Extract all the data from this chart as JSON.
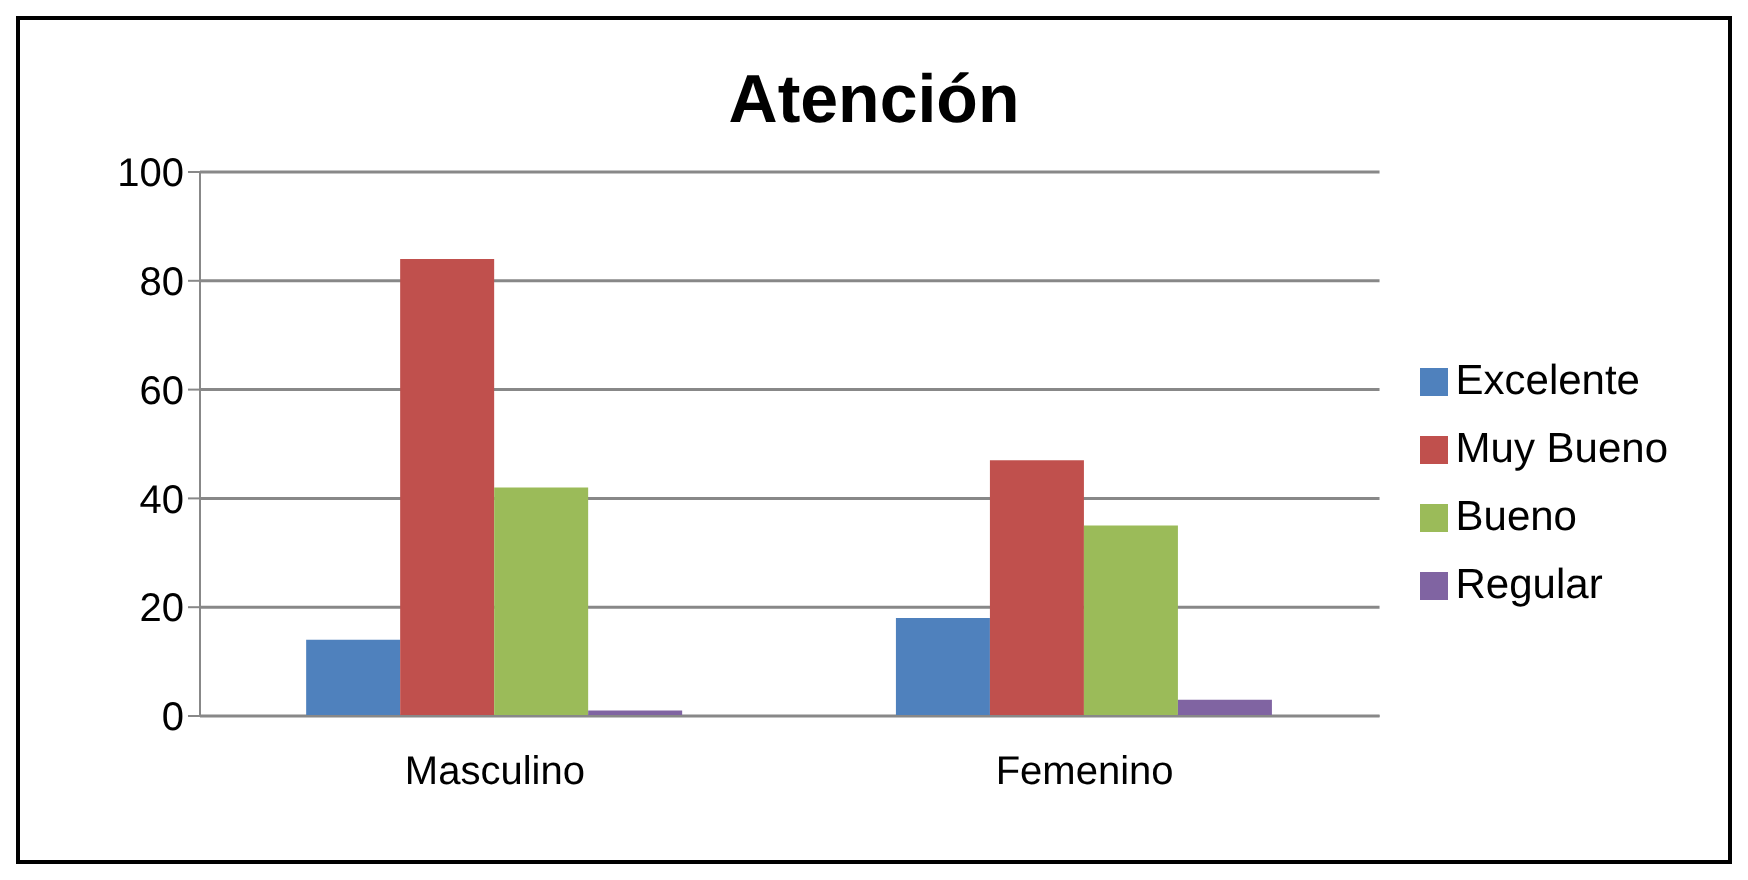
{
  "chart_data": {
    "type": "bar",
    "title": "Atención",
    "categories": [
      "Masculino",
      "Femenino"
    ],
    "series": [
      {
        "name": "Excelente",
        "color": "#4f81bd",
        "values": [
          14,
          18
        ]
      },
      {
        "name": "Muy Bueno",
        "color": "#c0504d",
        "values": [
          84,
          47
        ]
      },
      {
        "name": "Bueno",
        "color": "#9bbb59",
        "values": [
          42,
          35
        ]
      },
      {
        "name": "Regular",
        "color": "#8064a2",
        "values": [
          1,
          3
        ]
      }
    ],
    "ylim": [
      0,
      100
    ],
    "yticks": [
      0,
      20,
      40,
      60,
      80,
      100
    ],
    "grid": "y",
    "legend": "right"
  }
}
